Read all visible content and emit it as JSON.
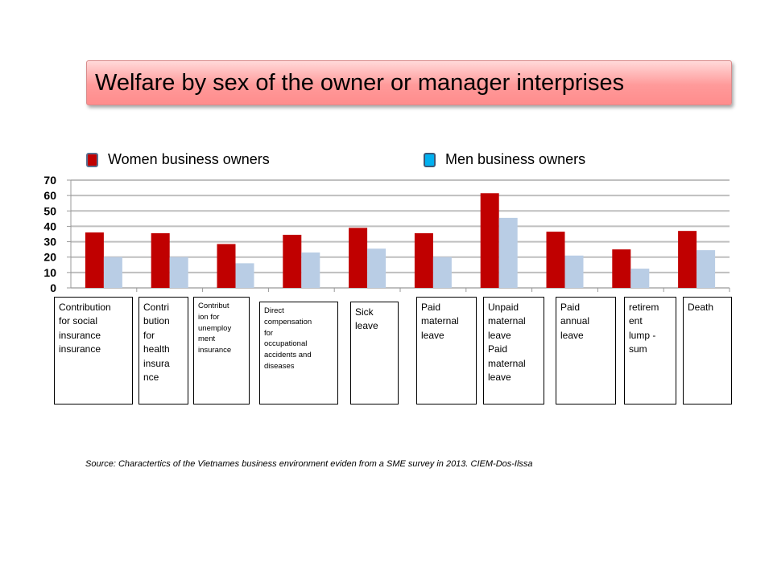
{
  "title": "Welfare by sex of the owner or manager interprises",
  "source": "Source: Charactertics of the Vietnames business environment eviden from a SME survey in 2013.  CIEM-Dos-Ilssa",
  "colors": {
    "women": "#c00000",
    "men": "#b9cde5",
    "grid": "#bfbfbf"
  },
  "chart_data": {
    "type": "bar",
    "ylim": [
      0,
      70
    ],
    "yticks": [
      "0",
      "10",
      "20",
      "30",
      "40",
      "50",
      "60",
      "70"
    ],
    "categories": [
      "Contribution\nfor social\ninsurance\ninsurance",
      "Contri\nbution\nfor\nhealth\ninsura\nnce",
      "Contribut\nion for\nunemploy\nment\ninsurance",
      "Direct\ncompensation\nfor\noccupational\naccidents and\ndiseases",
      "Sick\nleave",
      "Paid\nmaternal\nleave",
      "Unpaid\nmaternal\nleave\nPaid\nmaternal\nleave",
      "Paid\nannual\nleave",
      "retirem\nent\nlump -\nsum",
      "Death"
    ],
    "series": [
      {
        "name": "Women business owners",
        "values": [
          36,
          35.5,
          28.5,
          34.5,
          39,
          35.5,
          61.5,
          36.5,
          25,
          37
        ]
      },
      {
        "name": "Men business owners",
        "values": [
          20,
          20,
          16,
          23,
          25.5,
          20,
          45.5,
          21,
          12.5,
          24.5
        ]
      }
    ],
    "legend": "top",
    "grid": true
  }
}
